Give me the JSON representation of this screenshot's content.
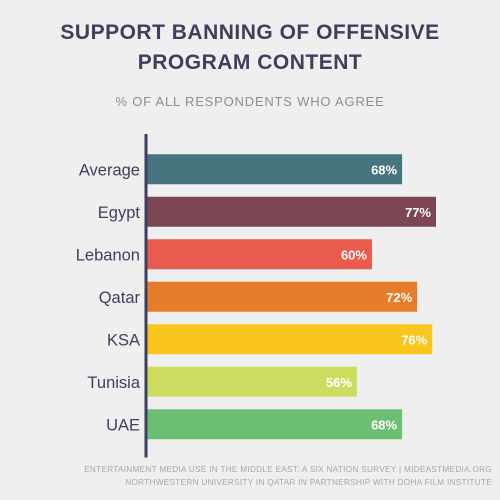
{
  "chart_data": {
    "type": "bar",
    "orientation": "horizontal",
    "title": "SUPPORT BANNING OF OFFENSIVE PROGRAM CONTENT",
    "subtitle": "% OF ALL RESPONDENTS WHO AGREE",
    "categories": [
      "Average",
      "Egypt",
      "Lebanon",
      "Qatar",
      "KSA",
      "Tunisia",
      "UAE"
    ],
    "values": [
      68,
      77,
      60,
      72,
      76,
      56,
      68
    ],
    "value_labels": [
      "68%",
      "77%",
      "60%",
      "72%",
      "76%",
      "56%",
      "68%"
    ],
    "colors": [
      "#467580",
      "#7c4753",
      "#e95b4e",
      "#e77d2b",
      "#fbc520",
      "#cddc5e",
      "#6bbf73"
    ],
    "axis_color": "#3d3f5e",
    "xlim": [
      0,
      100
    ],
    "grid": false,
    "legend": false
  },
  "footer": {
    "line1": "ENTERTAINMENT MEDIA USE IN THE MIDDLE EAST: A SIX NATION SURVEY | MIDEASTMEDIA.ORG",
    "line2": "NORTHWESTERN UNIVERSITY IN QATAR IN PARTNERSHIP WITH DOHA FILM INSTITUTE"
  }
}
